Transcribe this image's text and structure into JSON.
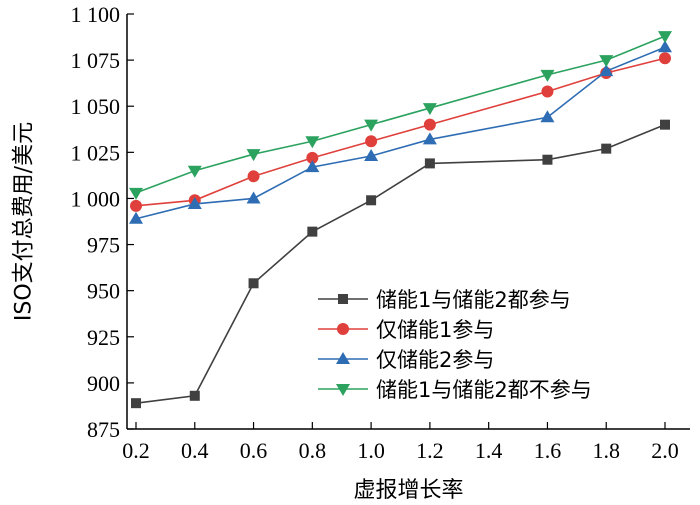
{
  "chart_data": {
    "type": "line",
    "xlabel": "虚报增长率",
    "ylabel": "ISO支付总费用/美元",
    "xlim": [
      0.2,
      2.0
    ],
    "ylim": [
      875,
      1100
    ],
    "x_ticks": [
      "0.2",
      "0.4",
      "0.6",
      "0.8",
      "1.0",
      "1.2",
      "1.4",
      "1.6",
      "1.8",
      "2.0"
    ],
    "y_ticks": [
      "875",
      "900",
      "925",
      "950",
      "975",
      "1 000",
      "1 025",
      "1 050",
      "1 075",
      "1 100"
    ],
    "legend_position": "lower-right",
    "grid": false,
    "series": [
      {
        "name": "储能1与储能2都参与",
        "color": "#404040",
        "marker": "square",
        "x": [
          0.2,
          0.4,
          0.6,
          0.8,
          1.0,
          1.2,
          1.6,
          1.8,
          2.0
        ],
        "values": [
          889,
          893,
          954,
          982,
          999,
          1019,
          1021,
          1027,
          1040
        ]
      },
      {
        "name": "仅储能1参与",
        "color": "#e0403c",
        "marker": "circle",
        "x": [
          0.2,
          0.4,
          0.6,
          0.8,
          1.0,
          1.2,
          1.6,
          1.8,
          2.0
        ],
        "values": [
          996,
          999,
          1012,
          1022,
          1031,
          1040,
          1058,
          1068,
          1076
        ]
      },
      {
        "name": "仅储能2参与",
        "color": "#2e6db4",
        "marker": "triangle-up",
        "x": [
          0.2,
          0.4,
          0.6,
          0.8,
          1.0,
          1.2,
          1.6,
          1.8,
          2.0
        ],
        "values": [
          989,
          997,
          1000,
          1017,
          1023,
          1032,
          1044,
          1069,
          1082
        ]
      },
      {
        "name": "储能1与储能2都不参与",
        "color": "#2ca25f",
        "marker": "triangle-down",
        "x": [
          0.2,
          0.4,
          0.6,
          0.8,
          1.0,
          1.2,
          1.6,
          1.8,
          2.0
        ],
        "values": [
          1003,
          1015,
          1024,
          1031,
          1040,
          1049,
          1067,
          1075,
          1088
        ]
      }
    ]
  }
}
